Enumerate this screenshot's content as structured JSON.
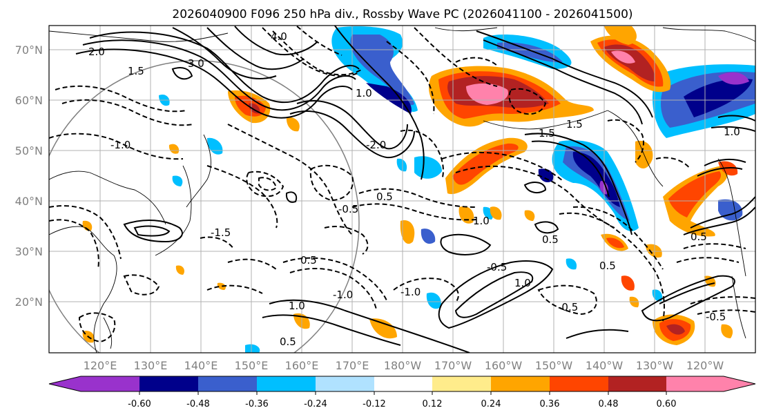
{
  "title": "2026040900 F096 250 hPa div., Rossby Wave PC (2026041100 - 2026041500)",
  "lat_labels": [
    "70°N",
    "60°N",
    "50°N",
    "40°N",
    "30°N",
    "20°N"
  ],
  "lon_labels": [
    "120°E",
    "130°E",
    "140°E",
    "150°E",
    "160°E",
    "170°E",
    "180°W",
    "170°W",
    "160°W",
    "150°W",
    "140°W",
    "130°W",
    "120°W"
  ],
  "colorbar": {
    "colors": [
      "#9932cc",
      "#00008b",
      "#3a5fcd",
      "#00bfff",
      "#b0e2ff",
      "#ffffff",
      "#ffec8b",
      "#ffa500",
      "#ff4500",
      "#b22222",
      "#ff82ab"
    ],
    "tick_labels": [
      "-0.60",
      "-0.48",
      "-0.36",
      "-0.24",
      "-0.12",
      "0.12",
      "0.24",
      "0.36",
      "0.48",
      "0.60"
    ]
  },
  "contour_labels": [
    "3.0",
    "2.0",
    "1.5",
    "4.0",
    "1.0",
    "0.5",
    "-0.5",
    "-1.0",
    "-1.5",
    "-2.0",
    "0.5",
    "1.0",
    "1.0",
    "0.5",
    "-0.5",
    "-1.0",
    "1.5",
    "1.0",
    "-0.5",
    "0.5",
    "0.5",
    "1.0",
    "-0.5",
    "1.5",
    "-1.0",
    "0.5"
  ]
}
